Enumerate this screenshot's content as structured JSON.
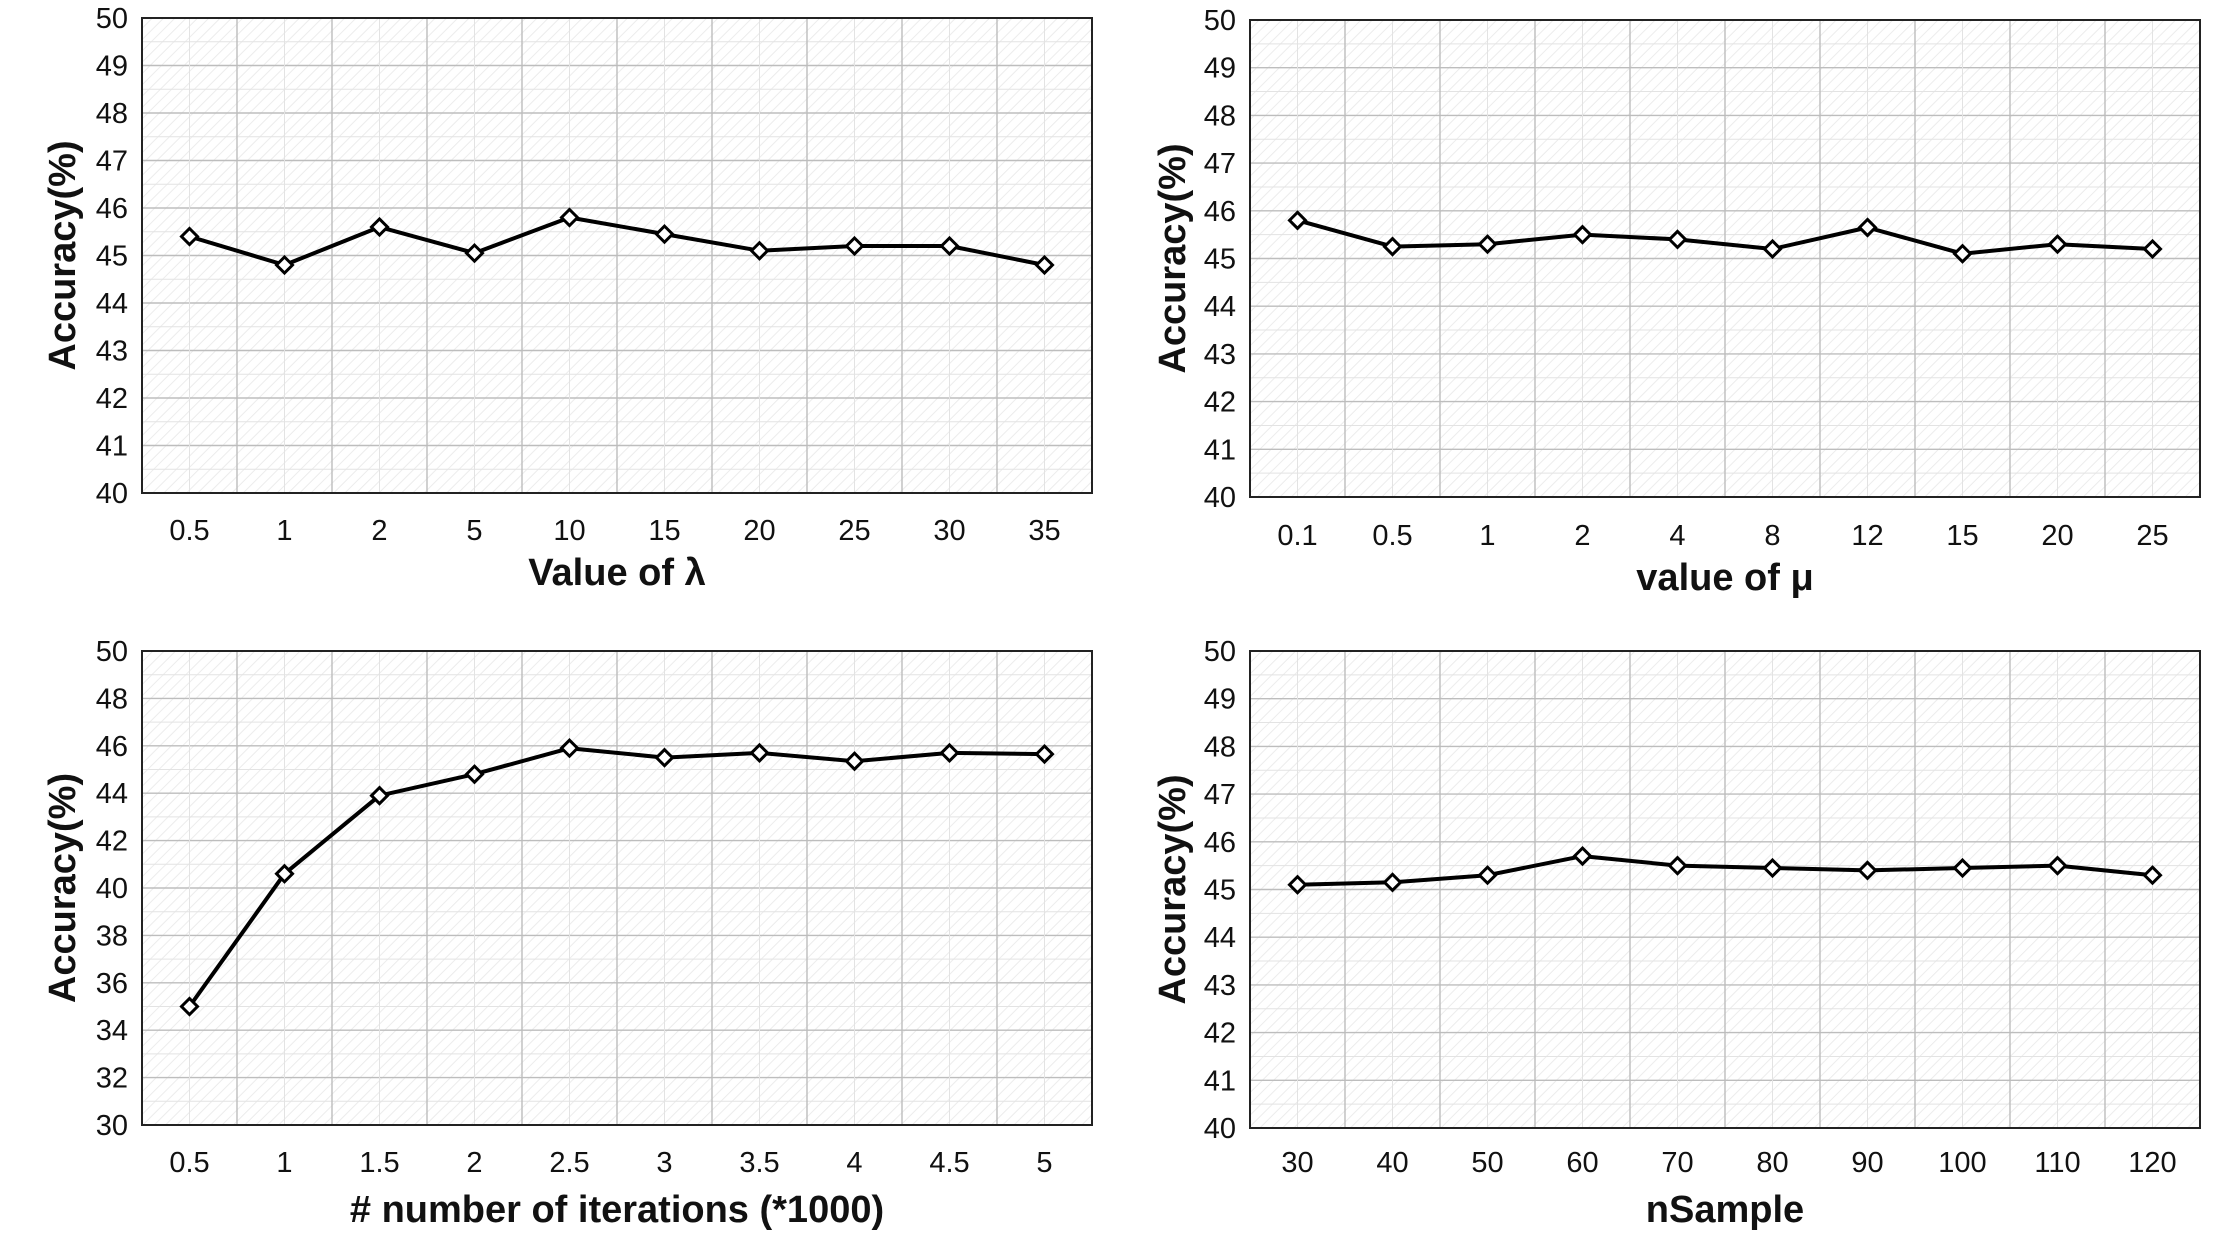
{
  "chart_data": [
    {
      "type": "line",
      "xlabel": "Value of λ",
      "ylabel": "Accuracy(%)",
      "categories": [
        "0.5",
        "1",
        "2",
        "5",
        "10",
        "15",
        "20",
        "25",
        "30",
        "35"
      ],
      "values": [
        45.4,
        44.8,
        45.6,
        45.05,
        45.8,
        45.45,
        45.1,
        45.2,
        45.2,
        44.8
      ],
      "ylim": [
        40,
        50
      ],
      "yticks": [
        "40",
        "41",
        "42",
        "43",
        "44",
        "45",
        "46",
        "47",
        "48",
        "49",
        "50"
      ],
      "grid": true,
      "line_color": "#000000",
      "marker": "diamond"
    },
    {
      "type": "line",
      "xlabel": "value of μ",
      "ylabel": "Accuracy(%)",
      "categories": [
        "0.1",
        "0.5",
        "1",
        "2",
        "4",
        "8",
        "12",
        "15",
        "20",
        "25"
      ],
      "values": [
        45.8,
        45.25,
        45.3,
        45.5,
        45.4,
        45.2,
        45.65,
        45.1,
        45.3,
        45.2
      ],
      "ylim": [
        40,
        50
      ],
      "yticks": [
        "40",
        "41",
        "42",
        "43",
        "44",
        "45",
        "46",
        "47",
        "48",
        "49",
        "50"
      ],
      "grid": true,
      "line_color": "#000000",
      "marker": "diamond"
    },
    {
      "type": "line",
      "xlabel": "# number of iterations (*1000)",
      "ylabel": "Accuracy(%)",
      "categories": [
        "0.5",
        "1",
        "1.5",
        "2",
        "2.5",
        "3",
        "3.5",
        "4",
        "4.5",
        "5"
      ],
      "values": [
        35.0,
        40.6,
        43.9,
        44.8,
        45.9,
        45.5,
        45.7,
        45.35,
        45.7,
        45.65
      ],
      "ylim": [
        30,
        50
      ],
      "yticks": [
        "30",
        "32",
        "34",
        "36",
        "38",
        "40",
        "42",
        "44",
        "46",
        "48",
        "50"
      ],
      "grid": true,
      "line_color": "#000000",
      "marker": "diamond"
    },
    {
      "type": "line",
      "xlabel": "nSample",
      "ylabel": "Accuracy(%)",
      "categories": [
        "30",
        "40",
        "50",
        "60",
        "70",
        "80",
        "90",
        "100",
        "110",
        "120"
      ],
      "values": [
        45.1,
        45.15,
        45.3,
        45.7,
        45.5,
        45.45,
        45.4,
        45.45,
        45.5,
        45.3
      ],
      "ylim": [
        40,
        50
      ],
      "yticks": [
        "40",
        "41",
        "42",
        "43",
        "44",
        "45",
        "46",
        "47",
        "48",
        "49",
        "50"
      ],
      "grid": true,
      "line_color": "#000000",
      "marker": "diamond"
    }
  ]
}
